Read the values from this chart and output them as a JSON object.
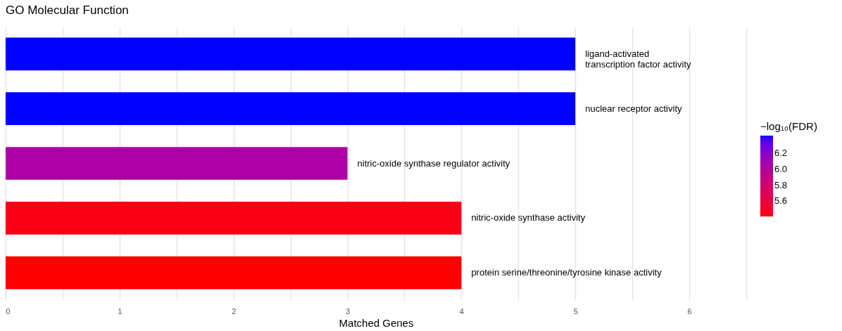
{
  "chart_data": {
    "type": "bar",
    "orientation": "horizontal",
    "title": "GO Molecular Function",
    "xlabel": "Matched Genes",
    "clabel": "−log₁₀(FDR)",
    "categories": [
      "ligand-activated\ntranscription factor activity",
      "nuclear receptor activity",
      "nitric-oxide synthase regulator activity",
      "nitric-oxide synthase activity",
      "protein serine/threonine/tyrosine kinase activity"
    ],
    "values": [
      5,
      5,
      3,
      4,
      4
    ],
    "cvalues": [
      6.42,
      6.42,
      6.04,
      5.45,
      5.41
    ],
    "colors": [
      "#0000ff",
      "#0000ff",
      "#a000b0",
      "#ff0022",
      "#ff0000"
    ],
    "clim": [
      5.41,
      6.42
    ],
    "cticks": [
      5.6,
      5.8,
      {
        "value": 6,
        "label": "6.0"
      },
      6.2
    ],
    "xlim": [
      0,
      6.5
    ],
    "xticks": [
      0,
      {
        "value": 0.5,
        "label": null
      },
      1,
      {
        "value": 1.5,
        "label": null
      },
      2,
      {
        "value": 2.5,
        "label": null
      },
      3,
      {
        "value": 3.5,
        "label": null
      },
      4,
      {
        "value": 4.5,
        "label": null
      },
      5,
      {
        "value": 5.5,
        "label": null
      },
      6,
      {
        "value": 6.5,
        "label": null
      }
    ],
    "grid": "x",
    "tick_labels": "x"
  }
}
